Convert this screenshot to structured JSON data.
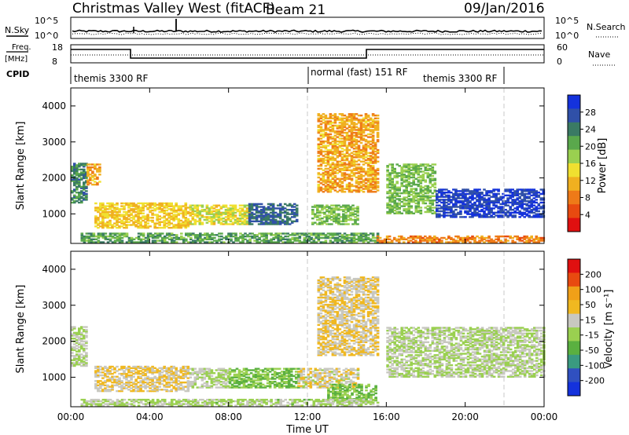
{
  "header": {
    "radar_title": "Christmas Valley West (fitACF)",
    "beam_label": "Beam 21",
    "date": "09/Jan/2016"
  },
  "panels": {
    "nsky_label": "N.Sky",
    "nsky_ticks": [
      "10^5",
      "10^0"
    ],
    "nsearch_label": "N.Search",
    "nsearch_ticks": [
      "10^5",
      "10^0"
    ],
    "freq_label_line1": "Freq.",
    "freq_label_line2": "[MHz]",
    "freq_ticks": [
      "18",
      "8"
    ],
    "nave_label": "Nave",
    "nave_ticks": [
      "60",
      "0"
    ],
    "cpid_label": "CPID",
    "cpid_segments": [
      "themis 3300 RF",
      "normal (fast) 151 RF",
      "themis 3300 RF"
    ]
  },
  "colorbars": {
    "power": {
      "label": "Power [dB]",
      "ticks": [
        "28",
        "24",
        "20",
        "16",
        "12",
        "8",
        "4"
      ],
      "colors": [
        "#1432dc",
        "#3050a8",
        "#3a7a64",
        "#5aa84c",
        "#9ad050",
        "#f0e030",
        "#f0b020",
        "#ee7a18",
        "#e84a10",
        "#e01010"
      ]
    },
    "velocity": {
      "label": "Velocity [m s⁻¹]",
      "ticks": [
        "200",
        "100",
        "50",
        "15",
        "-15",
        "-50",
        "-100",
        "-200"
      ],
      "colors": [
        "#e01010",
        "#e84a10",
        "#f0a018",
        "#f0b820",
        "#c8c8c0",
        "#9ad050",
        "#5ab040",
        "#3a9a80",
        "#3050c0",
        "#1432dc"
      ]
    }
  },
  "axes": {
    "ylabel": "Slant Range [km]",
    "xlabel": "Time UT",
    "y_ticks": [
      "4000",
      "3000",
      "2000",
      "1000"
    ],
    "x_ticks": [
      "00:00",
      "04:00",
      "08:00",
      "12:00",
      "16:00",
      "20:00",
      "00:00"
    ]
  },
  "chart_data": [
    {
      "type": "heatmap",
      "title": "Power",
      "xlabel": "Time UT",
      "ylabel": "Slant Range [km]",
      "xlim": [
        0,
        24
      ],
      "ylim": [
        180,
        4500
      ],
      "colorbar": "Power [dB]",
      "colorbar_range": [
        0,
        30
      ],
      "regions": [
        {
          "t": [
            0.0,
            0.8
          ],
          "r": [
            1300,
            2400
          ],
          "value": 22
        },
        {
          "t": [
            0.8,
            1.5
          ],
          "r": [
            1800,
            2400
          ],
          "value": 10
        },
        {
          "t": [
            1.2,
            6.0
          ],
          "r": [
            600,
            1300
          ],
          "value": 12
        },
        {
          "t": [
            6.0,
            9.0
          ],
          "r": [
            700,
            1250
          ],
          "value": 14
        },
        {
          "t": [
            9.0,
            11.5
          ],
          "r": [
            700,
            1300
          ],
          "value": 24
        },
        {
          "t": [
            12.2,
            14.5
          ],
          "r": [
            700,
            1250
          ],
          "value": 18
        },
        {
          "t": [
            0.5,
            15.5
          ],
          "r": [
            200,
            450
          ],
          "value": 20
        },
        {
          "t": [
            15.5,
            24.0
          ],
          "r": [
            200,
            400
          ],
          "value": 8
        },
        {
          "t": [
            16.0,
            18.5
          ],
          "r": [
            1000,
            2400
          ],
          "value": 18
        },
        {
          "t": [
            18.5,
            24.0
          ],
          "r": [
            900,
            1700
          ],
          "value": 27
        },
        {
          "t": [
            12.5,
            15.5
          ],
          "r": [
            1600,
            3800
          ],
          "value": 10
        }
      ]
    },
    {
      "type": "heatmap",
      "title": "Velocity",
      "xlabel": "Time UT",
      "ylabel": "Slant Range [km]",
      "xlim": [
        0,
        24
      ],
      "ylim": [
        180,
        4500
      ],
      "colorbar": "Velocity [m s⁻¹]",
      "colorbar_range": [
        -200,
        200
      ],
      "regions": [
        {
          "t": [
            0.0,
            0.8
          ],
          "r": [
            1300,
            2400
          ],
          "value": 0
        },
        {
          "t": [
            1.2,
            6.0
          ],
          "r": [
            600,
            1300
          ],
          "value": 40
        },
        {
          "t": [
            6.0,
            8.0
          ],
          "r": [
            700,
            1250
          ],
          "value": 0
        },
        {
          "t": [
            8.0,
            11.5
          ],
          "r": [
            700,
            1250
          ],
          "value": -40
        },
        {
          "t": [
            11.5,
            14.5
          ],
          "r": [
            700,
            1250
          ],
          "value": 30
        },
        {
          "t": [
            13.0,
            15.5
          ],
          "r": [
            300,
            800
          ],
          "value": -40
        },
        {
          "t": [
            0.5,
            15.5
          ],
          "r": [
            200,
            400
          ],
          "value": -5
        },
        {
          "t": [
            16.0,
            24.0
          ],
          "r": [
            1000,
            2400
          ],
          "value": 0
        },
        {
          "t": [
            12.5,
            15.5
          ],
          "r": [
            1600,
            3800
          ],
          "value": 40
        }
      ]
    }
  ]
}
